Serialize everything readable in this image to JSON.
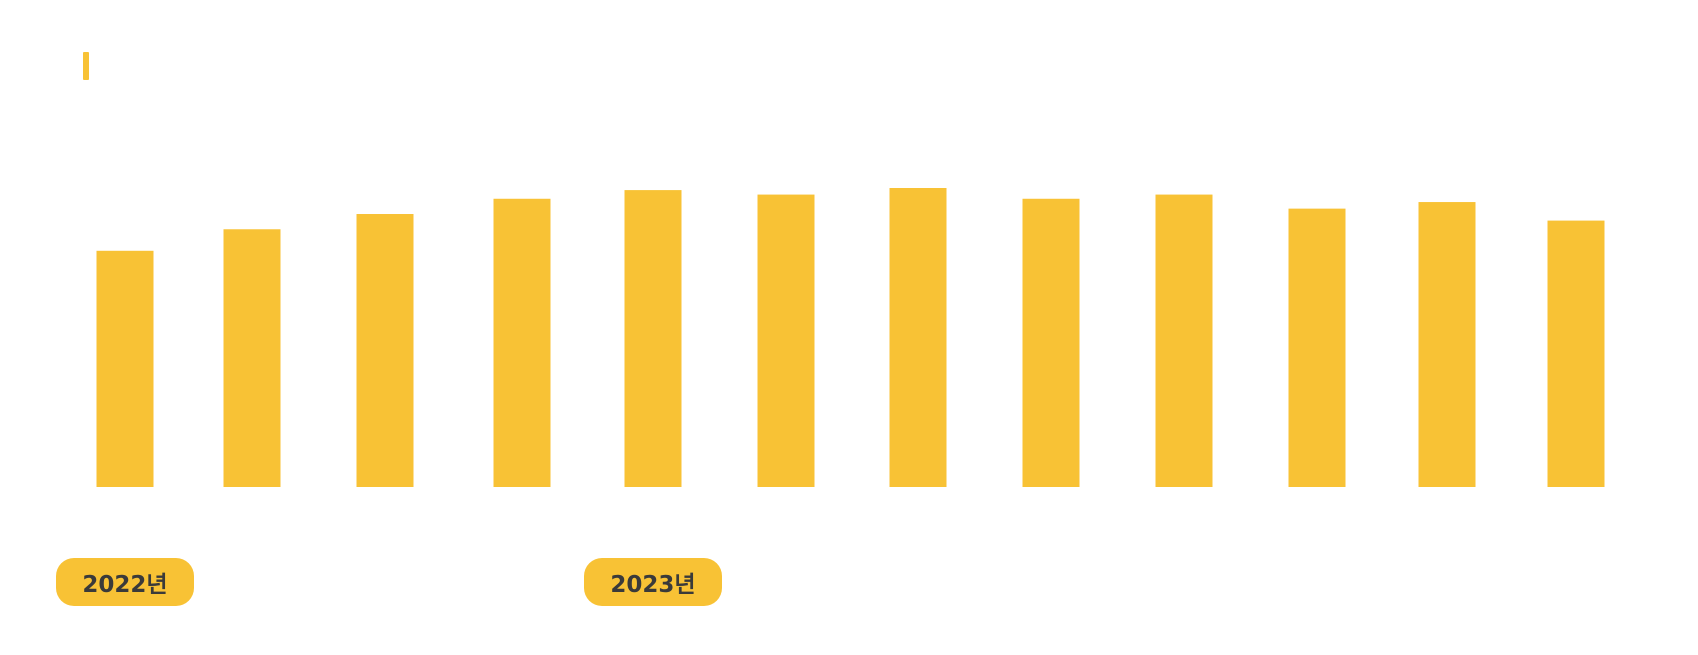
{
  "colors": {
    "bar": "#F8C235",
    "pill": "#F8C235",
    "pill_text": "#3a3a3a",
    "background": "#FFFFFF"
  },
  "chart_data": {
    "type": "bar",
    "title": "",
    "xlabel": "",
    "ylabel": "",
    "grid": false,
    "legend": "none",
    "ylim": [
      0,
      100
    ],
    "categories": [
      "",
      "",
      "",
      "",
      "",
      "",
      "",
      "",
      "",
      "",
      "",
      ""
    ],
    "values": [
      79.0,
      86.2,
      91.3,
      96.4,
      99.3,
      97.8,
      100.0,
      96.4,
      97.8,
      93.1,
      95.3,
      89.1
    ],
    "year_groups": [
      {
        "label": "2022년",
        "start_index": 0
      },
      {
        "label": "2023년",
        "start_index": 4
      }
    ]
  }
}
